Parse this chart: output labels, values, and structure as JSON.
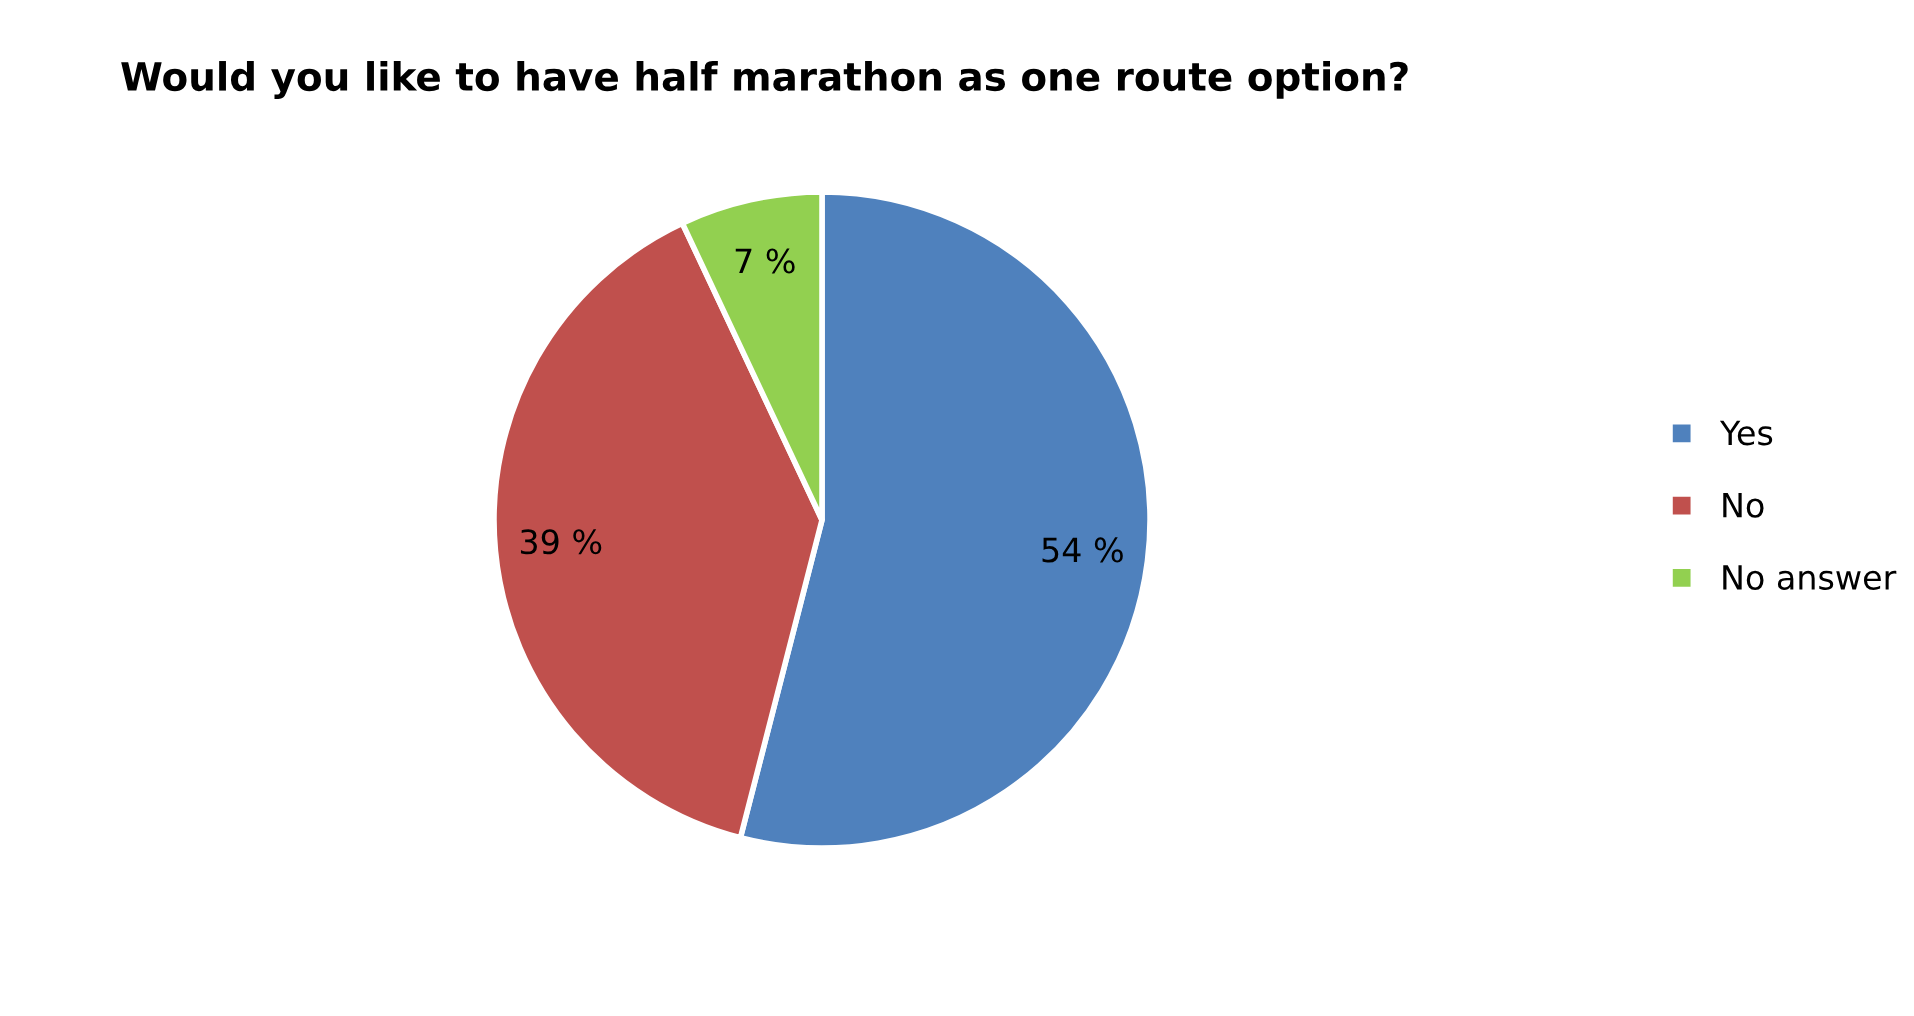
{
  "chart_data": {
    "type": "pie",
    "title": "Would you like to have half marathon as one route option?",
    "categories": [
      "Yes",
      "No",
      "No answer"
    ],
    "values": [
      54,
      39,
      7
    ],
    "colors": [
      "#4f81bd",
      "#c0504d",
      "#92d050"
    ],
    "value_labels": [
      "54 %",
      "39 %",
      "7 %"
    ],
    "legend": "right"
  }
}
